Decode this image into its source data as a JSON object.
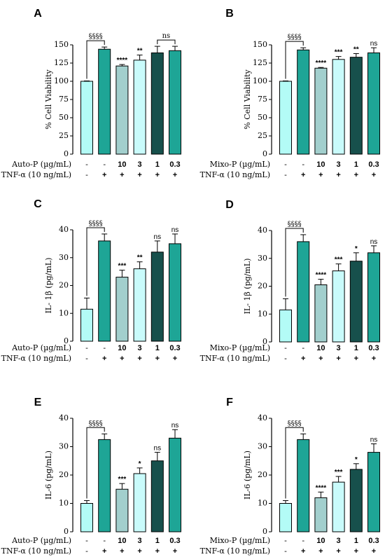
{
  "palette": {
    "light_cyan": "#b3fbf6",
    "teal": "#1ea596",
    "gray_teal": "#a2cfcd",
    "pale_cyan": "#c9fbfb",
    "dark_teal": "#17504c",
    "line": "#000000"
  },
  "chart_data": [
    {
      "panel": "A",
      "type": "bar",
      "ylabel": "% Cell Viability",
      "ylim": [
        0,
        150
      ],
      "yticks": [
        0,
        25,
        50,
        75,
        100,
        125,
        150
      ],
      "row1_label": "Auto-P (µg/mL)",
      "row2_label": "TNF-α (10 ng/mL)",
      "row1_values": [
        "-",
        "-",
        "10",
        "3",
        "1",
        "0.3"
      ],
      "row2_values": [
        "-",
        "+",
        "+",
        "+",
        "+",
        "+"
      ],
      "values": [
        100,
        144,
        121,
        129,
        139,
        142
      ],
      "errors": [
        0.5,
        3,
        2,
        7,
        9,
        6
      ],
      "colors": [
        "light_cyan",
        "teal",
        "gray_teal",
        "pale_cyan",
        "dark_teal",
        "teal"
      ],
      "significance": [
        "",
        "",
        "****",
        "**",
        "",
        ""
      ],
      "brackets": [
        {
          "from": 0,
          "to": 1,
          "label": "§§§§"
        },
        {
          "from": 4,
          "to": 5,
          "label": "ns"
        }
      ]
    },
    {
      "panel": "B",
      "type": "bar",
      "ylabel": "% Cell Viability",
      "ylim": [
        0,
        150
      ],
      "yticks": [
        0,
        25,
        50,
        75,
        100,
        125,
        150
      ],
      "row1_label": "Mixo-P (µg/mL)",
      "row2_label": "TNF-α (10 ng/mL)",
      "row1_values": [
        "-",
        "-",
        "10",
        "3",
        "1",
        "0.3"
      ],
      "row2_values": [
        "-",
        "+",
        "+",
        "+",
        "+",
        "+"
      ],
      "values": [
        100,
        143,
        118,
        130,
        133,
        139
      ],
      "errors": [
        0.5,
        3,
        1,
        4,
        5,
        7
      ],
      "colors": [
        "light_cyan",
        "teal",
        "gray_teal",
        "pale_cyan",
        "dark_teal",
        "teal"
      ],
      "significance": [
        "",
        "",
        "****",
        "***",
        "**",
        "ns"
      ],
      "brackets": [
        {
          "from": 0,
          "to": 1,
          "label": "§§§§"
        }
      ]
    },
    {
      "panel": "C",
      "type": "bar",
      "ylabel": "IL- 1β (pg/mL)",
      "ylim": [
        0,
        40
      ],
      "yticks": [
        0,
        10,
        20,
        30,
        40
      ],
      "row1_label": "Auto-P (µg/mL)",
      "row2_label": "TNF-α (10 ng/mL)",
      "row1_values": [
        "-",
        "-",
        "10",
        "3",
        "1",
        "0.3"
      ],
      "row2_values": [
        "-",
        "+",
        "+",
        "+",
        "+",
        "+"
      ],
      "values": [
        11.5,
        36,
        23,
        26,
        32,
        35
      ],
      "errors": [
        4,
        2.5,
        2.5,
        2.5,
        4,
        3.5
      ],
      "colors": [
        "light_cyan",
        "teal",
        "gray_teal",
        "pale_cyan",
        "dark_teal",
        "teal"
      ],
      "significance": [
        "",
        "",
        "***",
        "**",
        "ns",
        "ns"
      ],
      "brackets": [
        {
          "from": 0,
          "to": 1,
          "label": "§§§§"
        }
      ]
    },
    {
      "panel": "D",
      "type": "bar",
      "ylabel": "IL- 1β (pg/mL)",
      "ylim": [
        0,
        40
      ],
      "yticks": [
        0,
        10,
        20,
        30,
        40
      ],
      "row1_label": "Mixo-P (µg/mL)",
      "row2_label": "TNF-α (10 ng/mL)",
      "row1_values": [
        "-",
        "-",
        "10",
        "3",
        "1",
        "0.3"
      ],
      "row2_values": [
        "-",
        "+",
        "+",
        "+",
        "+",
        "+"
      ],
      "values": [
        11.5,
        36,
        20.5,
        25.5,
        29,
        32
      ],
      "errors": [
        4,
        2.5,
        2,
        2.5,
        3,
        2.5
      ],
      "colors": [
        "light_cyan",
        "teal",
        "gray_teal",
        "pale_cyan",
        "dark_teal",
        "teal"
      ],
      "significance": [
        "",
        "",
        "****",
        "***",
        "*",
        "ns"
      ],
      "brackets": [
        {
          "from": 0,
          "to": 1,
          "label": "§§§§"
        }
      ]
    },
    {
      "panel": "E",
      "type": "bar",
      "ylabel": "IL-6 (pg/mL)",
      "ylim": [
        0,
        40
      ],
      "yticks": [
        0,
        10,
        20,
        30,
        40
      ],
      "row1_label": "Auto-P (µg/mL)",
      "row2_label": "TNF-α (10 ng/mL)",
      "row1_values": [
        "-",
        "-",
        "10",
        "3",
        "1",
        "0.3"
      ],
      "row2_values": [
        "-",
        "+",
        "+",
        "+",
        "+",
        "+"
      ],
      "values": [
        10,
        32.5,
        15,
        20.5,
        25,
        33
      ],
      "errors": [
        1,
        2,
        2,
        2,
        3,
        3
      ],
      "colors": [
        "light_cyan",
        "teal",
        "gray_teal",
        "pale_cyan",
        "dark_teal",
        "teal"
      ],
      "significance": [
        "",
        "",
        "***",
        "*",
        "ns",
        "ns"
      ],
      "brackets": [
        {
          "from": 0,
          "to": 1,
          "label": "§§§§"
        }
      ]
    },
    {
      "panel": "F",
      "type": "bar",
      "ylabel": "IL-6 (pg/mL)",
      "ylim": [
        0,
        40
      ],
      "yticks": [
        0,
        10,
        20,
        30,
        40
      ],
      "row1_label": "Mixo-P (µg/mL)",
      "row2_label": "TNF-α (10 ng/mL)",
      "row1_values": [
        "-",
        "-",
        "10",
        "3",
        "1",
        "0.3"
      ],
      "row2_values": [
        "-",
        "+",
        "+",
        "+",
        "+",
        "+"
      ],
      "values": [
        10,
        32.5,
        12,
        17.5,
        22,
        28
      ],
      "errors": [
        1,
        2,
        2,
        2,
        2,
        3
      ],
      "colors": [
        "light_cyan",
        "teal",
        "gray_teal",
        "pale_cyan",
        "dark_teal",
        "teal"
      ],
      "significance": [
        "",
        "",
        "****",
        "***",
        "*",
        "ns"
      ],
      "brackets": [
        {
          "from": 0,
          "to": 1,
          "label": "§§§§"
        }
      ]
    }
  ]
}
